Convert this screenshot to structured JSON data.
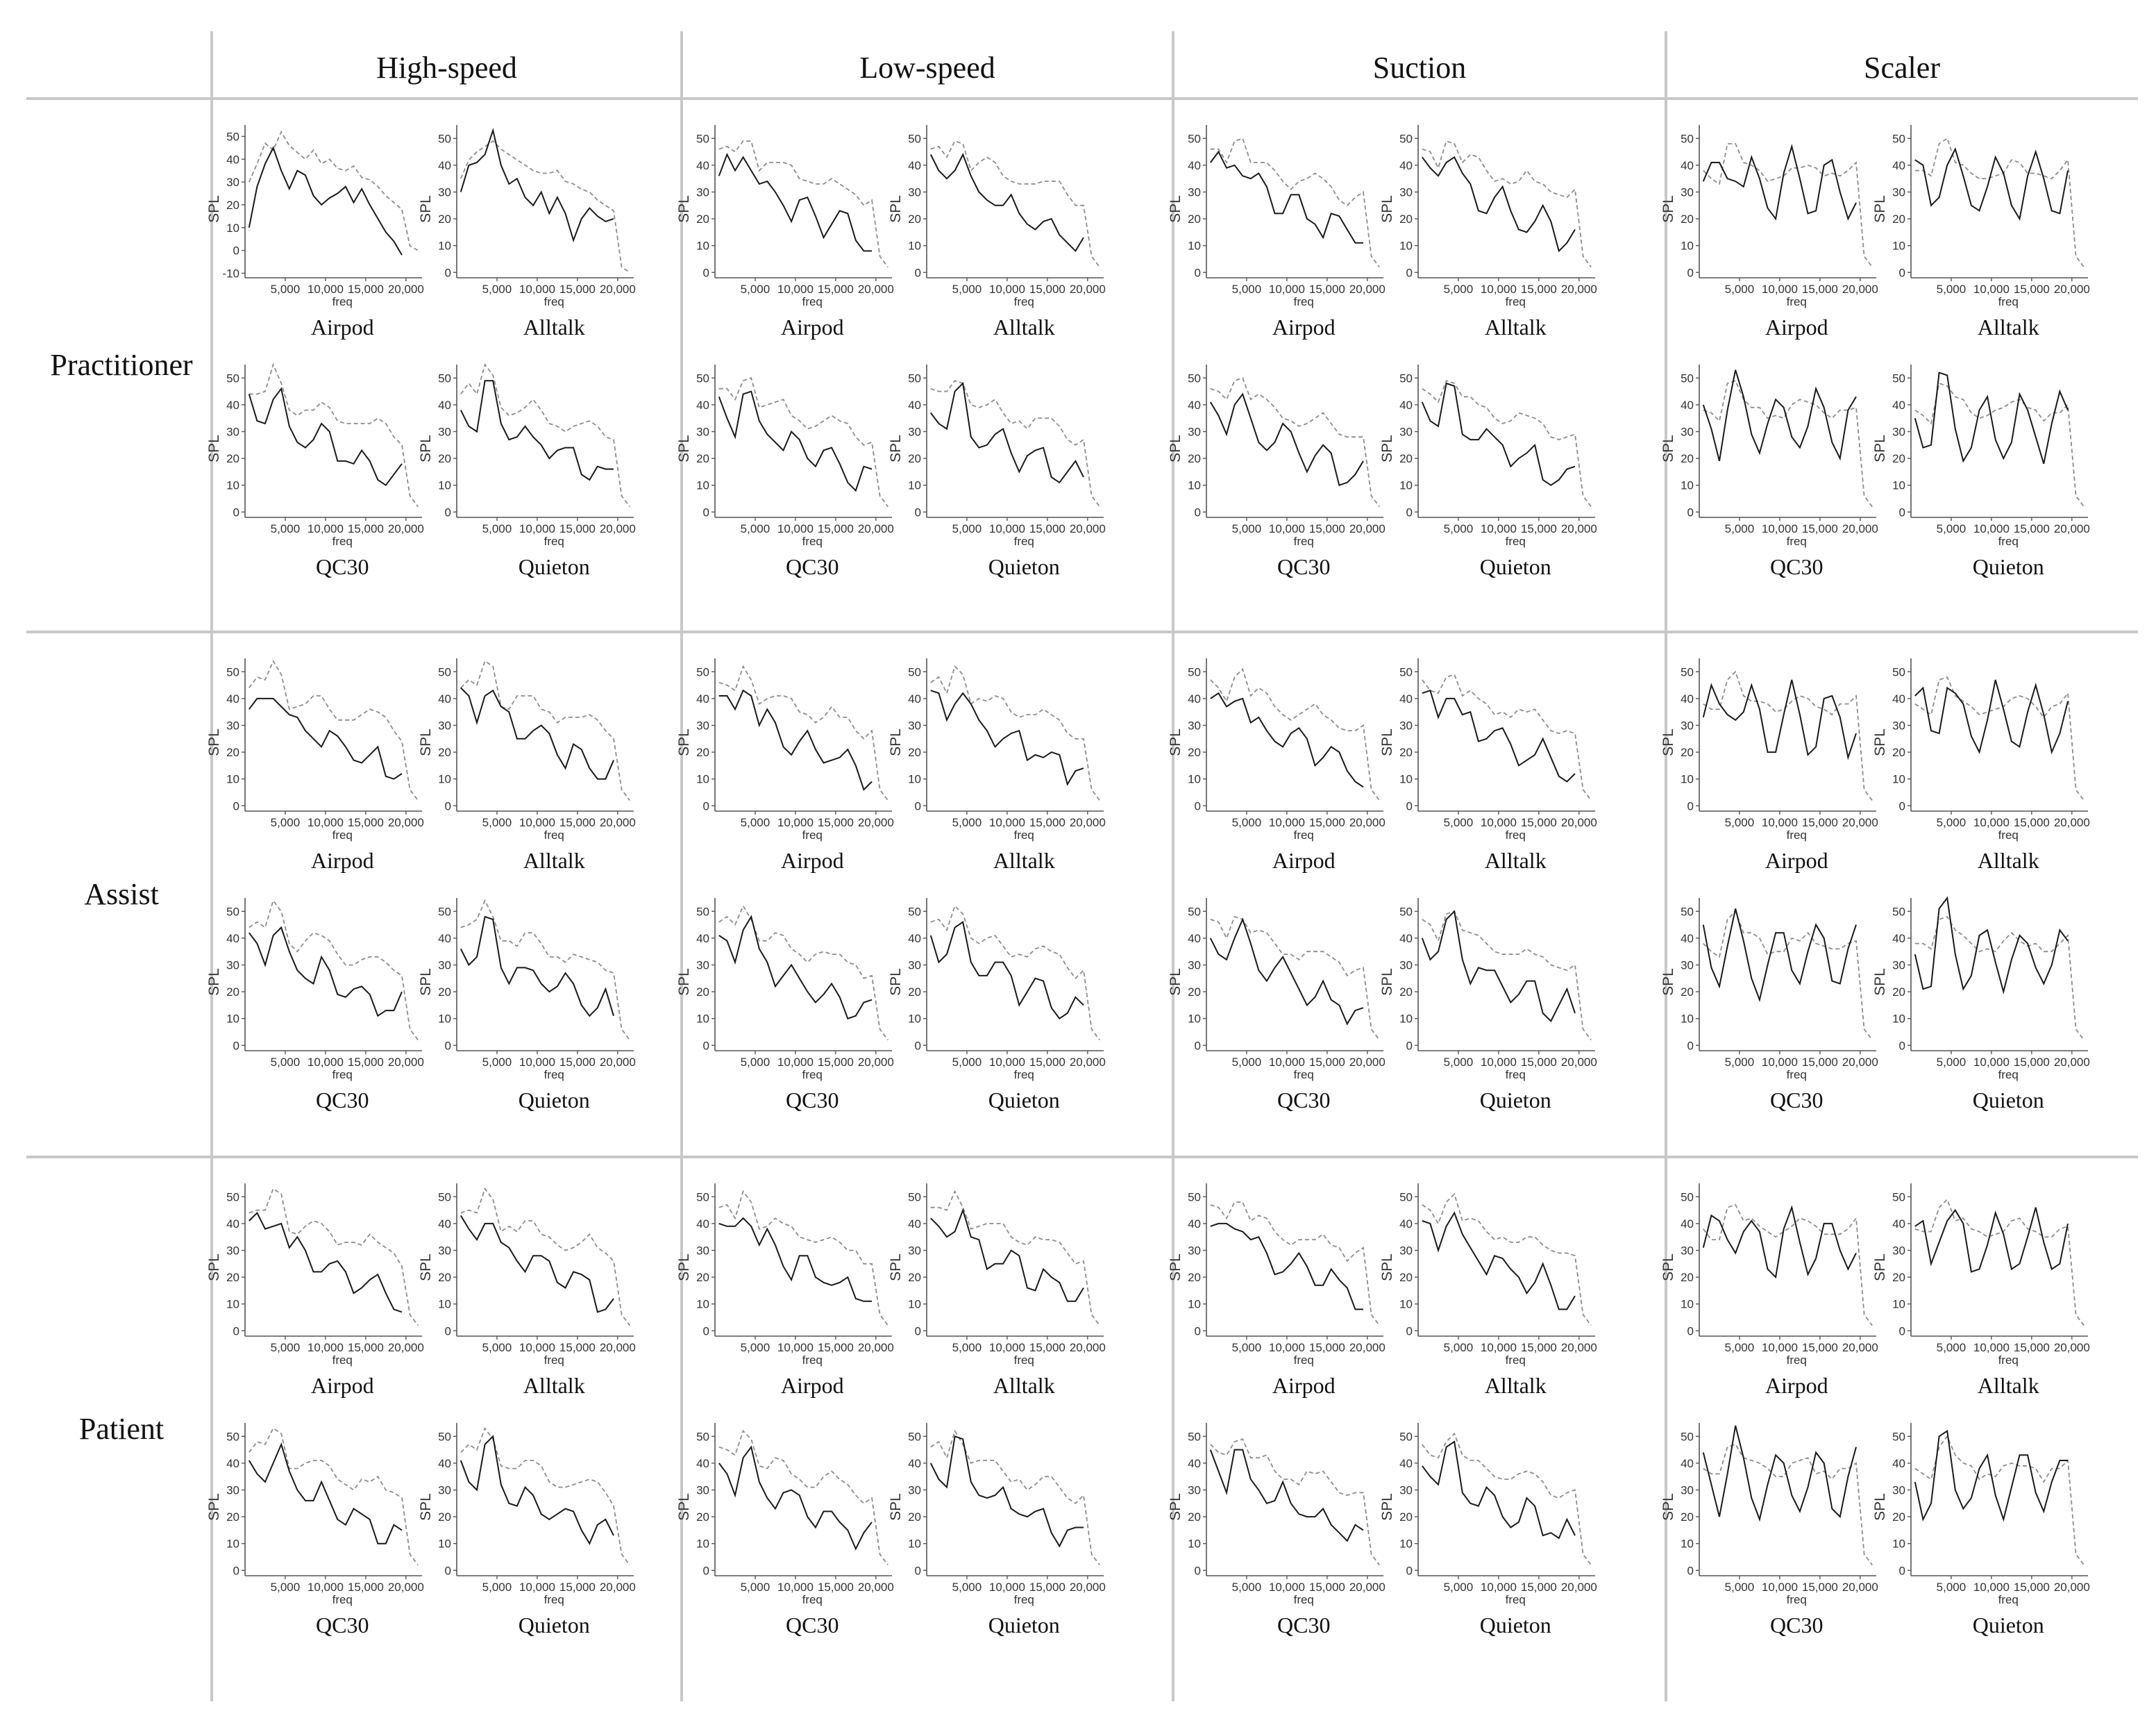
{
  "figure": {
    "columns": [
      "High-speed",
      "Low-speed",
      "Suction",
      "Scaler"
    ],
    "rows": [
      "Practitioner",
      "Assist",
      "Patient"
    ],
    "headphones": [
      "Airpod",
      "Alltalk",
      "QC30",
      "Quieton"
    ]
  },
  "chart_data": {
    "type": "line",
    "layout": "small multiples: 3 rows (position) x 4 columns (noise source) x 4 headphones",
    "xlabel": "freq",
    "ylabel": "SPL",
    "x_ticks": [
      5000,
      10000,
      15000,
      20000
    ],
    "x_tick_labels": [
      "5,000",
      "10,000",
      "15,000",
      "20,000"
    ],
    "xlim": [
      0,
      22000
    ],
    "x": [
      500,
      1500,
      2500,
      3500,
      4500,
      5500,
      6500,
      7500,
      8500,
      9500,
      10500,
      11500,
      12500,
      13500,
      14500,
      15500,
      16500,
      17500,
      18500,
      19500,
      20500,
      21500
    ],
    "series_styles": [
      {
        "style": "solid",
        "color": "#1a1a1a"
      },
      {
        "style": "dashed",
        "color": "#8c8c8c"
      }
    ],
    "panels": {
      "Practitioner": {
        "High-speed": {
          "Airpod": {
            "ylim": [
              -12,
              55
            ],
            "y_ticks": [
              -10,
              0,
              10,
              20,
              30,
              40,
              50
            ],
            "solid": [
              10,
              28,
              38,
              45,
              35,
              27,
              35,
              33,
              24,
              20,
              23,
              25,
              28,
              21,
              27,
              20,
              14,
              8,
              4,
              -2,
              null,
              null
            ],
            "dashed": [
              30,
              38,
              47,
              44,
              52,
              46,
              43,
              40,
              44,
              38,
              40,
              36,
              35,
              37,
              32,
              31,
              28,
              24,
              21,
              18,
              2,
              0
            ]
          },
          "Alltalk": {
            "ylim": [
              -2,
              55
            ],
            "y_ticks": [
              0,
              10,
              20,
              30,
              40,
              50
            ],
            "solid": [
              30,
              40,
              41,
              44,
              53,
              40,
              33,
              35,
              28,
              25,
              30,
              22,
              28,
              22,
              12,
              20,
              24,
              21,
              19,
              20,
              null,
              null
            ],
            "dashed": [
              35,
              42,
              45,
              47,
              49,
              46,
              44,
              42,
              40,
              38,
              37,
              37,
              38,
              34,
              33,
              31,
              30,
              27,
              25,
              23,
              2,
              0
            ]
          }
        }
      }
    }
  }
}
